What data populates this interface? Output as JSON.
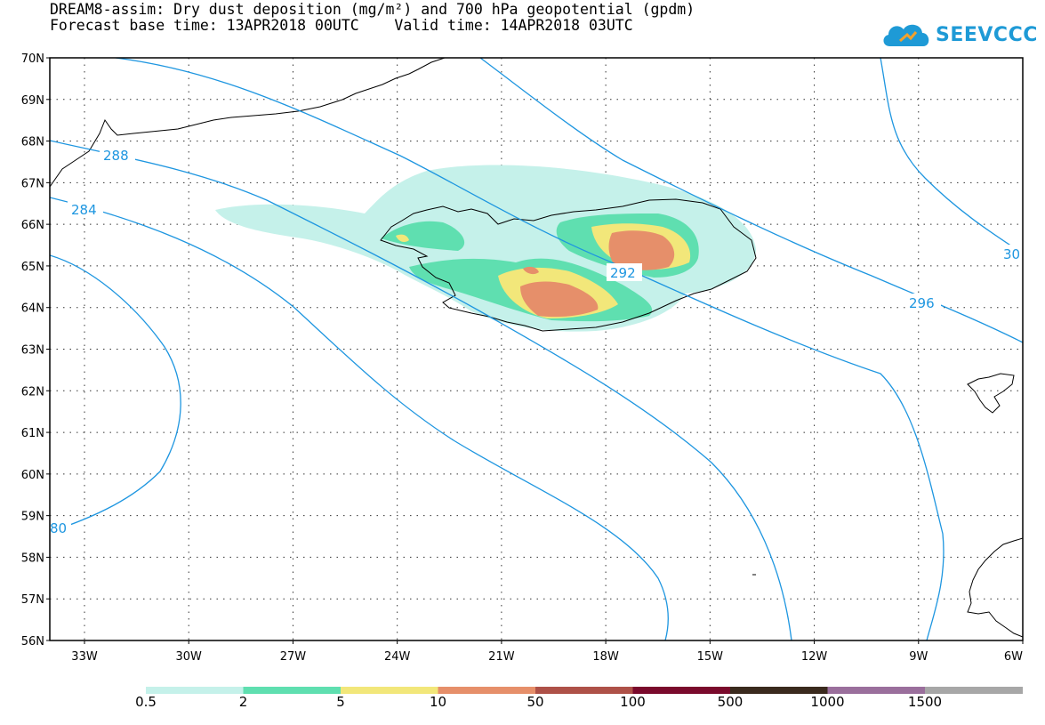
{
  "title": {
    "line1": "DREAM8-assim: Dry dust deposition (mg/m²) and 700 hPa geopotential (gpdm)",
    "line2": "Forecast base time: 13APR2018 00UTC    Valid time: 14APR2018 03UTC"
  },
  "logo": {
    "text": "SEEVCCC",
    "icon": "cloud-icon"
  },
  "map": {
    "lat_labels": [
      "70N",
      "69N",
      "68N",
      "67N",
      "66N",
      "65N",
      "64N",
      "63N",
      "62N",
      "61N",
      "60N",
      "59N",
      "58N",
      "57N",
      "56N"
    ],
    "lon_labels": [
      "33W",
      "30W",
      "27W",
      "24W",
      "21W",
      "18W",
      "15W",
      "12W",
      "9W",
      "6W"
    ],
    "contour_labels": [
      "288",
      "284",
      "292",
      "296",
      "30",
      "80"
    ]
  },
  "legend": {
    "labels": [
      "0.5",
      "2",
      "5",
      "10",
      "50",
      "100",
      "500",
      "1000",
      "1500"
    ],
    "colors": [
      "#c5f1ea",
      "#5fdfb0",
      "#f2e77a",
      "#e68f6a",
      "#ae5148",
      "#7a0a2c",
      "#3a2a1e",
      "#9a6f9c",
      "#a7a7a7"
    ]
  },
  "colors": {
    "contour": "#1e96e0",
    "coast": "#000000"
  }
}
